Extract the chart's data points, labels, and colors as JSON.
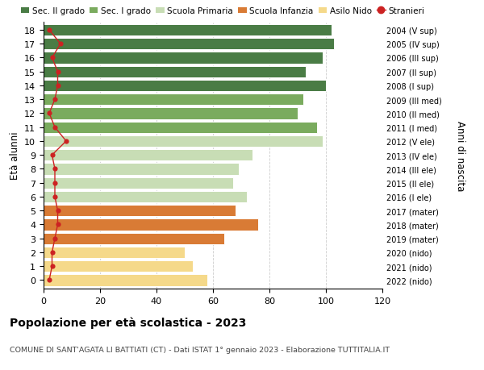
{
  "ages": [
    18,
    17,
    16,
    15,
    14,
    13,
    12,
    11,
    10,
    9,
    8,
    7,
    6,
    5,
    4,
    3,
    2,
    1,
    0
  ],
  "values": [
    102,
    103,
    99,
    93,
    100,
    92,
    90,
    97,
    99,
    74,
    69,
    67,
    72,
    68,
    76,
    64,
    50,
    53,
    58
  ],
  "stranieri": [
    2,
    6,
    3,
    5,
    5,
    4,
    2,
    4,
    8,
    3,
    4,
    4,
    4,
    5,
    5,
    4,
    3,
    3,
    2
  ],
  "colors": [
    "#4a7c45",
    "#4a7c45",
    "#4a7c45",
    "#4a7c45",
    "#4a7c45",
    "#7aab5e",
    "#7aab5e",
    "#7aab5e",
    "#c8ddb5",
    "#c8ddb5",
    "#c8ddb5",
    "#c8ddb5",
    "#c8ddb5",
    "#d97b35",
    "#d97b35",
    "#d97b35",
    "#f5d98a",
    "#f5d98a",
    "#f5d98a"
  ],
  "right_labels": [
    "2004 (V sup)",
    "2005 (IV sup)",
    "2006 (III sup)",
    "2007 (II sup)",
    "2008 (I sup)",
    "2009 (III med)",
    "2010 (II med)",
    "2011 (I med)",
    "2012 (V ele)",
    "2013 (IV ele)",
    "2014 (III ele)",
    "2015 (II ele)",
    "2016 (I ele)",
    "2017 (mater)",
    "2018 (mater)",
    "2019 (mater)",
    "2020 (nido)",
    "2021 (nido)",
    "2022 (nido)"
  ],
  "legend_labels": [
    "Sec. II grado",
    "Sec. I grado",
    "Scuola Primaria",
    "Scuola Infanzia",
    "Asilo Nido",
    "Stranieri"
  ],
  "legend_colors": [
    "#4a7c45",
    "#7aab5e",
    "#c8ddb5",
    "#d97b35",
    "#f5d98a",
    "#cc2222"
  ],
  "stranieri_color": "#cc2222",
  "ylabel": "Età alunni",
  "right_ylabel": "Anni di nascita",
  "title": "Popolazione per età scolastica - 2023",
  "subtitle": "COMUNE DI SANT'AGATA LI BATTIATI (CT) - Dati ISTAT 1° gennaio 2023 - Elaborazione TUTTITALIA.IT",
  "xlim": [
    0,
    120
  ],
  "xticks": [
    0,
    20,
    40,
    60,
    80,
    100,
    120
  ],
  "bg_color": "#ffffff",
  "grid_color": "#cccccc"
}
